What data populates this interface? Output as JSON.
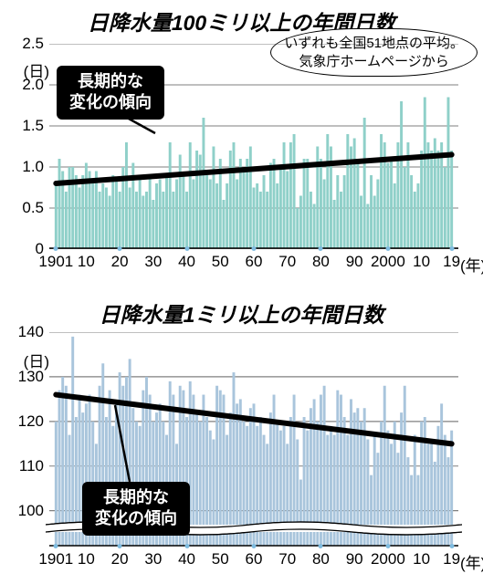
{
  "background_color": "#ffffff",
  "axis_color": "#000000",
  "bar_color_top": "#8fd0c9",
  "bar_color_bottom": "#a9c5dc",
  "trend_color": "#000000",
  "dot_color": "#7fbce0",
  "title_fontsize": 23,
  "tick_fontsize": 17,
  "note_fontsize": 15,
  "callout_fontsize": 18,
  "chart1": {
    "title": "日降水量100ミリ以上の年間日数",
    "y_unit": "(日)",
    "x_unit": "(年)",
    "note_line1": "いずれも全国51地点の平均。",
    "note_line2": "気象庁ホームページから",
    "callout_line1": "長期的な",
    "callout_line2": "変化の傾向",
    "ylim": [
      0,
      2.5
    ],
    "yticks": [
      0,
      0.5,
      1.0,
      1.5,
      2.0,
      2.5
    ],
    "ytick_labels": [
      "0",
      "0.5",
      "1.0",
      "1.5",
      "2.0",
      "2.5"
    ],
    "xlim": [
      1899,
      2021
    ],
    "xticks": [
      1901,
      1910,
      1920,
      1930,
      1940,
      1950,
      1960,
      1970,
      1980,
      1990,
      2000,
      2010,
      2019
    ],
    "xtick_labels": [
      "1901",
      "10",
      "20",
      "30",
      "40",
      "50",
      "60",
      "70",
      "80",
      "90",
      "2000",
      "10",
      "19"
    ],
    "x_dots": [
      1901,
      1920,
      1940,
      1960,
      1980,
      2000,
      2019
    ],
    "trend_start": [
      1901,
      0.8
    ],
    "trend_end": [
      2019,
      1.15
    ],
    "values": [
      0.8,
      1.1,
      0.95,
      0.7,
      1.0,
      1.0,
      0.9,
      0.75,
      0.9,
      1.05,
      0.95,
      0.85,
      0.95,
      0.7,
      0.8,
      0.75,
      0.65,
      0.9,
      0.85,
      0.7,
      1.0,
      1.3,
      0.75,
      1.05,
      0.7,
      0.9,
      0.65,
      0.7,
      0.85,
      0.6,
      0.8,
      0.85,
      0.7,
      0.9,
      1.3,
      0.7,
      0.85,
      1.15,
      0.9,
      0.7,
      1.3,
      0.85,
      1.2,
      1.15,
      1.6,
      0.9,
      0.85,
      1.25,
      0.8,
      1.1,
      0.6,
      0.8,
      1.2,
      1.3,
      0.85,
      1.1,
      0.95,
      1.1,
      1.25,
      0.75,
      0.8,
      0.7,
      0.9,
      0.7,
      1.05,
      1.1,
      0.8,
      1.0,
      1.3,
      0.95,
      1.3,
      1.4,
      0.5,
      0.65,
      1.1,
      1.1,
      0.7,
      0.55,
      1.25,
      1.1,
      0.85,
      1.4,
      1.25,
      0.6,
      0.9,
      0.7,
      0.9,
      1.4,
      1.25,
      1.35,
      1.1,
      0.65,
      1.6,
      0.55,
      0.9,
      0.65,
      0.85,
      1.4,
      1.3,
      1.05,
      1.1,
      0.8,
      1.3,
      1.8,
      1.0,
      1.3,
      0.9,
      0.7,
      0.8,
      1.2,
      1.85,
      1.3,
      1.2,
      1.35,
      1.2,
      1.3,
      1.0,
      1.85,
      1.2
    ]
  },
  "chart2": {
    "title": "日降水量1ミリ以上の年間日数",
    "y_unit": "(日)",
    "x_unit": "(年)",
    "callout_line1": "長期的な",
    "callout_line2": "変化の傾向",
    "ylim": [
      92,
      140
    ],
    "yticks": [
      100,
      110,
      120,
      130,
      140
    ],
    "ytick_labels": [
      "100",
      "110",
      "120",
      "130",
      "140"
    ],
    "xlim": [
      1899,
      2021
    ],
    "xticks": [
      1901,
      1910,
      1920,
      1930,
      1940,
      1950,
      1960,
      1970,
      1980,
      1990,
      2000,
      2010,
      2019
    ],
    "xtick_labels": [
      "1901",
      "10",
      "20",
      "30",
      "40",
      "50",
      "60",
      "70",
      "80",
      "90",
      "2000",
      "10",
      "19"
    ],
    "x_dots": [
      1901,
      1920,
      1940,
      1960,
      1980,
      2000,
      2019
    ],
    "trend_start": [
      1901,
      126
    ],
    "trend_end": [
      2019,
      115
    ],
    "break_at": 96,
    "values": [
      120,
      127,
      130,
      128,
      117,
      139,
      121,
      126,
      122,
      124,
      126,
      120,
      115,
      128,
      133,
      121,
      127,
      119,
      124,
      131,
      128,
      130,
      134,
      123,
      120,
      119,
      127,
      130,
      126,
      120,
      122,
      124,
      120,
      117,
      129,
      126,
      115,
      128,
      127,
      121,
      129,
      126,
      122,
      120,
      126,
      121,
      118,
      116,
      128,
      127,
      126,
      117,
      122,
      131,
      124,
      125,
      120,
      119,
      123,
      124,
      119,
      121,
      117,
      115,
      122,
      126,
      120,
      118,
      119,
      115,
      121,
      126,
      116,
      107,
      121,
      118,
      123,
      125,
      120,
      126,
      128,
      117,
      119,
      117,
      127,
      126,
      121,
      117,
      125,
      122,
      123,
      120,
      123,
      116,
      108,
      117,
      113,
      120,
      128,
      118,
      115,
      120,
      113,
      122,
      128,
      112,
      108,
      117,
      108,
      120,
      121,
      115,
      116,
      111,
      119,
      124,
      117,
      112,
      118
    ]
  }
}
